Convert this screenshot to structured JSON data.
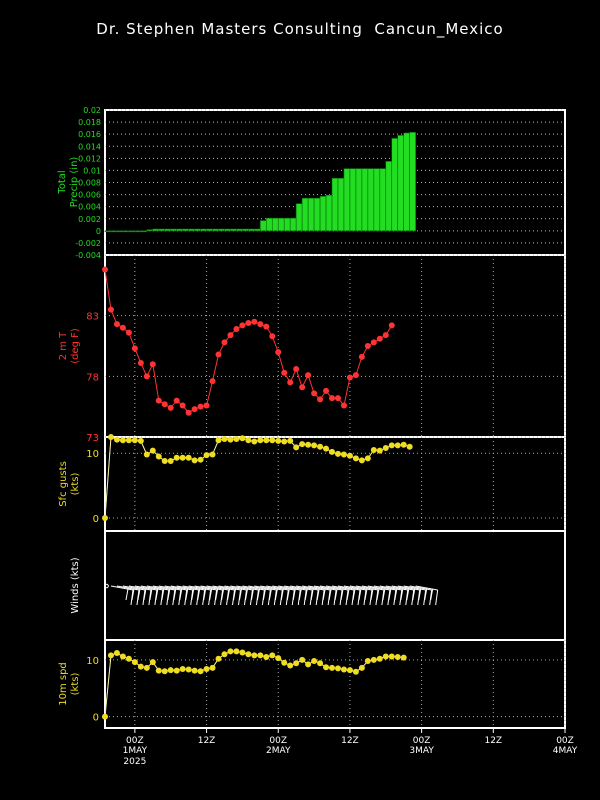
{
  "title": "Dr. Stephen Masters Consulting  Cancun_Mexico",
  "x_axis": {
    "ticks": [
      {
        "line1": "00Z",
        "line2": "1MAY",
        "line3": "2025",
        "hour": 12
      },
      {
        "line1": "12Z",
        "line2": "",
        "line3": "",
        "hour": 24
      },
      {
        "line1": "00Z",
        "line2": "2MAY",
        "line3": "",
        "hour": 36
      },
      {
        "line1": "12Z",
        "line2": "",
        "line3": "",
        "hour": 48
      },
      {
        "line1": "00Z",
        "line2": "3MAY",
        "line3": "",
        "hour": 60
      },
      {
        "line1": "12Z",
        "line2": "",
        "line3": "",
        "hour": 72
      },
      {
        "line1": "00Z",
        "line2": "4MAY",
        "line3": "",
        "hour": 84
      }
    ],
    "range_hours": [
      7,
      84
    ]
  },
  "chart_data": [
    {
      "type": "bar",
      "panel": "precip",
      "ylabel_line1": "Total",
      "ylabel_line2": "Precip (in)",
      "color": "#22dd22",
      "ylim": [
        -0.004,
        0.02
      ],
      "yticks": [
        "0.02",
        "0.018",
        "0.016",
        "0.014",
        "0.012",
        "0.01",
        "0.008",
        "0.006",
        "0.004",
        "0.002",
        "0",
        "-0.002",
        "-0.004"
      ],
      "x_start_hour": 7,
      "x_step_hours": 1,
      "values": [
        0,
        0,
        0,
        0,
        0,
        0,
        0,
        0.0002,
        0.0003,
        0.0003,
        0.0003,
        0.0003,
        0.0003,
        0.0003,
        0.0003,
        0.0003,
        0.0003,
        0.0003,
        0.0003,
        0.0003,
        0.0003,
        0.0003,
        0.0003,
        0.0003,
        0.0003,
        0.0003,
        0.0017,
        0.0021,
        0.0021,
        0.0021,
        0.0021,
        0.0021,
        0.0045,
        0.0054,
        0.0054,
        0.0054,
        0.0057,
        0.0059,
        0.0087,
        0.0087,
        0.0103,
        0.0103,
        0.0103,
        0.0103,
        0.0103,
        0.0103,
        0.0103,
        0.0115,
        0.0153,
        0.0158,
        0.0162,
        0.0163
      ]
    },
    {
      "type": "line",
      "panel": "temp",
      "ylabel_line1": "2 m T",
      "ylabel_line2": "(deg F)",
      "color": "#ff3333",
      "ylim": [
        73,
        88
      ],
      "yticks": [
        "83",
        "78",
        "73"
      ],
      "x_start_hour": 7,
      "x_step_hours": 1,
      "values": [
        86.8,
        83.5,
        82.3,
        82.0,
        81.6,
        80.3,
        79.1,
        78.0,
        79.0,
        76.0,
        75.7,
        75.4,
        76.0,
        75.6,
        75.0,
        75.3,
        75.5,
        75.6,
        77.6,
        79.8,
        80.8,
        81.4,
        81.9,
        82.2,
        82.4,
        82.5,
        82.3,
        82.1,
        81.3,
        80.0,
        78.3,
        77.5,
        78.6,
        77.1,
        78.1,
        76.6,
        76.1,
        76.8,
        76.2,
        76.2,
        75.6,
        77.9,
        78.1,
        79.6,
        80.5,
        80.8,
        81.1,
        81.4,
        82.2
      ]
    },
    {
      "type": "line",
      "panel": "gusts",
      "ylabel_line1": "Sfc gusts",
      "ylabel_line2": "(kts)",
      "color": "#eedd22",
      "ylim": [
        -2,
        12.5
      ],
      "yticks": [
        "10",
        "0"
      ],
      "x_start_hour": 7,
      "x_step_hours": 1,
      "values": [
        0,
        14,
        12.1,
        12.0,
        12.0,
        12.0,
        11.9,
        9.8,
        10.4,
        9.5,
        8.8,
        8.8,
        9.3,
        9.3,
        9.3,
        8.9,
        9.0,
        9.7,
        9.8,
        12.0,
        12.2,
        12.1,
        12.2,
        12.3,
        12.0,
        11.8,
        12.0,
        12.0,
        12.0,
        11.9,
        11.8,
        11.9,
        10.9,
        11.4,
        11.3,
        11.2,
        11.0,
        10.7,
        10.2,
        9.9,
        9.8,
        9.6,
        9.2,
        8.9,
        9.2,
        10.5,
        10.4,
        10.8,
        11.2,
        11.2,
        11.3,
        11.0
      ]
    },
    {
      "type": "barbs",
      "panel": "winds",
      "ylabel_line1": "Winds (kts)",
      "color": "#ffffff",
      "x_start_hour": 8,
      "x_step_hours": 1,
      "count": 52
    },
    {
      "type": "line",
      "panel": "speed",
      "ylabel_line1": "10m spd",
      "ylabel_line2": "(kts)",
      "color": "#eedd22",
      "ylim": [
        -2,
        13.5
      ],
      "yticks": [
        "10",
        "0"
      ],
      "x_start_hour": 7,
      "x_step_hours": 1,
      "values": [
        0,
        10.8,
        11.2,
        10.6,
        10.2,
        9.6,
        8.8,
        8.6,
        9.6,
        8.1,
        8.0,
        8.2,
        8.1,
        8.4,
        8.3,
        8.1,
        8.0,
        8.4,
        8.6,
        10.2,
        11.0,
        11.5,
        11.5,
        11.3,
        11.0,
        10.8,
        10.8,
        10.5,
        10.8,
        10.3,
        9.5,
        9.0,
        9.4,
        10.0,
        9.2,
        9.8,
        9.4,
        8.7,
        8.6,
        8.5,
        8.3,
        8.2,
        7.9,
        8.6,
        9.8,
        10.0,
        10.2,
        10.6,
        10.6,
        10.5,
        10.4
      ]
    }
  ]
}
